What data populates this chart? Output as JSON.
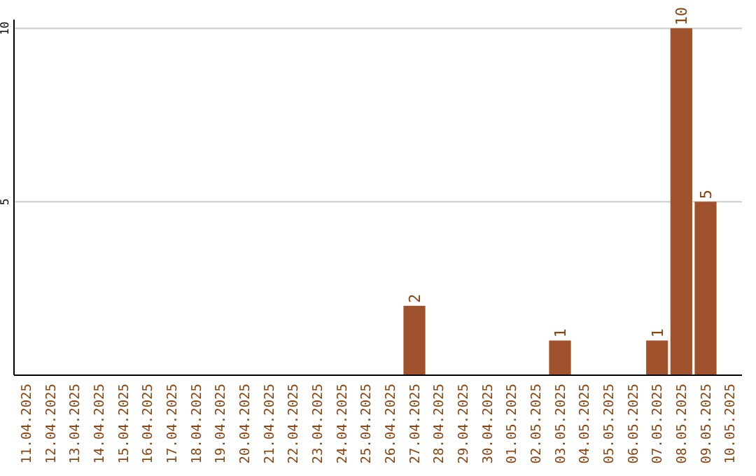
{
  "chart_data": {
    "type": "bar",
    "categories": [
      "11.04.2025",
      "12.04.2025",
      "13.04.2025",
      "14.04.2025",
      "15.04.2025",
      "16.04.2025",
      "17.04.2025",
      "18.04.2025",
      "19.04.2025",
      "20.04.2025",
      "21.04.2025",
      "22.04.2025",
      "23.04.2025",
      "24.04.2025",
      "25.04.2025",
      "26.04.2025",
      "27.04.2025",
      "28.04.2025",
      "29.04.2025",
      "30.04.2025",
      "01.05.2025",
      "02.05.2025",
      "03.05.2025",
      "04.05.2025",
      "05.05.2025",
      "06.05.2025",
      "07.05.2025",
      "08.05.2025",
      "09.05.2025",
      "10.05.2025"
    ],
    "values": [
      0,
      0,
      0,
      0,
      0,
      0,
      0,
      0,
      0,
      0,
      0,
      0,
      0,
      0,
      0,
      0,
      2,
      0,
      0,
      0,
      0,
      0,
      1,
      0,
      0,
      0,
      1,
      10,
      5,
      0
    ],
    "value_labels": [
      null,
      null,
      null,
      null,
      null,
      null,
      null,
      null,
      null,
      null,
      null,
      null,
      null,
      null,
      null,
      null,
      "2",
      null,
      null,
      null,
      null,
      null,
      "1",
      null,
      null,
      null,
      "1",
      "10",
      "5",
      null
    ],
    "color": "#a0522d",
    "ylim": [
      0,
      10.25
    ],
    "yticks": [
      5,
      10
    ],
    "grid": "y"
  }
}
